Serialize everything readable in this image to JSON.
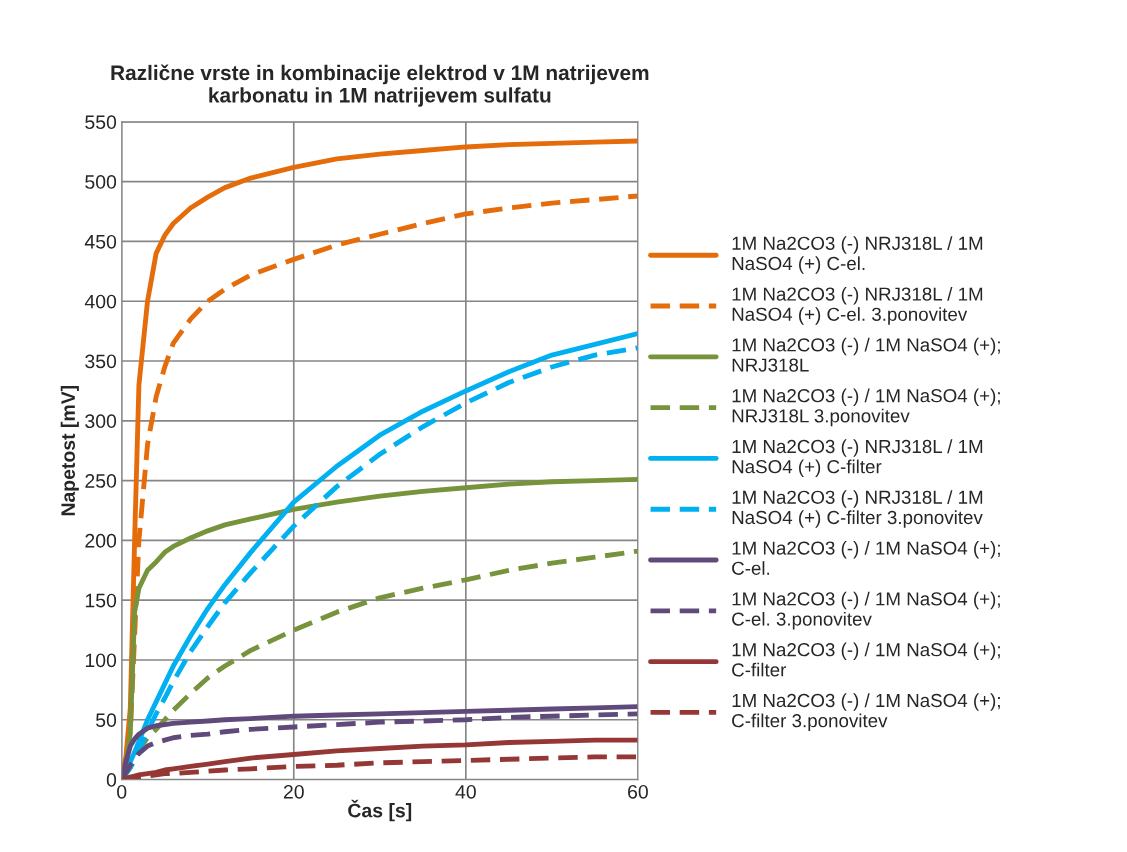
{
  "chart_data": {
    "type": "line",
    "title": "Različne vrste in kombinacije elektrod v 1M natrijevem\nkarbonatu in 1M natrijevem sulfatu",
    "xlabel": "Čas [s]",
    "ylabel": "Napetost [mV]",
    "x": [
      0,
      0.5,
      1,
      1.5,
      2,
      3,
      4,
      5,
      6,
      8,
      10,
      12,
      15,
      20,
      25,
      30,
      35,
      40,
      45,
      50,
      55,
      60
    ],
    "xlim": [
      0,
      60
    ],
    "xticks": [
      0,
      20,
      40,
      60
    ],
    "ylim": [
      0,
      550
    ],
    "yticks": [
      0,
      50,
      100,
      150,
      200,
      250,
      300,
      350,
      400,
      450,
      500,
      550
    ],
    "grid": true,
    "legend": "right",
    "series": [
      {
        "name": "1M Na2CO3 (-) NRJ318L / 1M\nNaSO4 (+) C-el.",
        "color": "#e46c0a",
        "line_style": "solid",
        "values": [
          0,
          20,
          60,
          200,
          330,
          400,
          440,
          455,
          465,
          478,
          487,
          495,
          503,
          512,
          519,
          523,
          526,
          529,
          531,
          532,
          533,
          534
        ]
      },
      {
        "name": "1M Na2CO3 (-) NRJ318L / 1M\nNaSO4 (+) C-el. 3.ponovitev",
        "color": "#e46c0a",
        "line_style": "dashed",
        "values": [
          0,
          15,
          40,
          120,
          200,
          280,
          320,
          345,
          365,
          385,
          400,
          410,
          422,
          435,
          447,
          456,
          465,
          473,
          478,
          482,
          485,
          488
        ]
      },
      {
        "name": "1M Na2CO3 (-) / 1M NaSO4 (+);\nNRJ318L",
        "color": "#77933c",
        "line_style": "solid",
        "values": [
          0,
          10,
          40,
          140,
          160,
          175,
          182,
          190,
          195,
          202,
          208,
          213,
          218,
          226,
          232,
          237,
          241,
          244,
          247,
          249,
          250,
          251
        ]
      },
      {
        "name": "1M Na2CO3 (-) / 1M NaSO4 (+);\nNRJ318L 3.ponovitev",
        "color": "#77933c",
        "line_style": "dashed",
        "values": [
          0,
          5,
          10,
          17,
          25,
          35,
          42,
          50,
          58,
          72,
          85,
          95,
          108,
          125,
          140,
          152,
          160,
          167,
          175,
          181,
          186,
          191
        ]
      },
      {
        "name": "1M Na2CO3 (-) NRJ318L / 1M\nNaSO4 (+) C-filter",
        "color": "#00b0f0",
        "line_style": "solid",
        "values": [
          0,
          7,
          15,
          23,
          32,
          50,
          65,
          80,
          95,
          120,
          143,
          163,
          190,
          232,
          262,
          288,
          308,
          325,
          341,
          355,
          364,
          373
        ]
      },
      {
        "name": "1M Na2CO3 (-) NRJ318L / 1M\nNaSO4 (+) C-filter 3.ponovitev",
        "color": "#00b0f0",
        "line_style": "dashed",
        "values": [
          0,
          5,
          10,
          17,
          25,
          40,
          55,
          68,
          82,
          107,
          128,
          148,
          173,
          212,
          245,
          272,
          295,
          315,
          332,
          345,
          355,
          361
        ]
      },
      {
        "name": "1M Na2CO3 (-) / 1M NaSO4 (+);\nC-el.",
        "color": "#604a7b",
        "line_style": "solid",
        "values": [
          0,
          15,
          28,
          34,
          38,
          43,
          45,
          46,
          47,
          48,
          49,
          50,
          51,
          53,
          54,
          55,
          56,
          57,
          58,
          59,
          60,
          61
        ]
      },
      {
        "name": "1M Na2CO3 (-) / 1M NaSO4 (+);\nC-el. 3.ponovitev",
        "color": "#604a7b",
        "line_style": "dashed",
        "values": [
          0,
          6,
          12,
          17,
          22,
          28,
          31,
          33,
          35,
          37,
          38,
          40,
          42,
          44,
          46,
          48,
          49,
          50,
          52,
          53,
          54,
          55
        ]
      },
      {
        "name": "1M Na2CO3 (-) / 1M NaSO4 (+);\nC-filter",
        "color": "#953735",
        "line_style": "solid",
        "values": [
          0,
          1,
          2,
          3,
          4,
          5,
          6,
          8,
          9,
          11,
          13,
          15,
          18,
          21,
          24,
          26,
          28,
          29,
          31,
          32,
          33,
          33
        ]
      },
      {
        "name": "1M Na2CO3 (-) / 1M NaSO4 (+);\nC-filter 3.ponovitev",
        "color": "#953735",
        "line_style": "dashed",
        "values": [
          0,
          0,
          1,
          1,
          2,
          3,
          4,
          5,
          5,
          6,
          7,
          8,
          9,
          11,
          12,
          14,
          15,
          16,
          17,
          18,
          19,
          19
        ]
      }
    ]
  }
}
